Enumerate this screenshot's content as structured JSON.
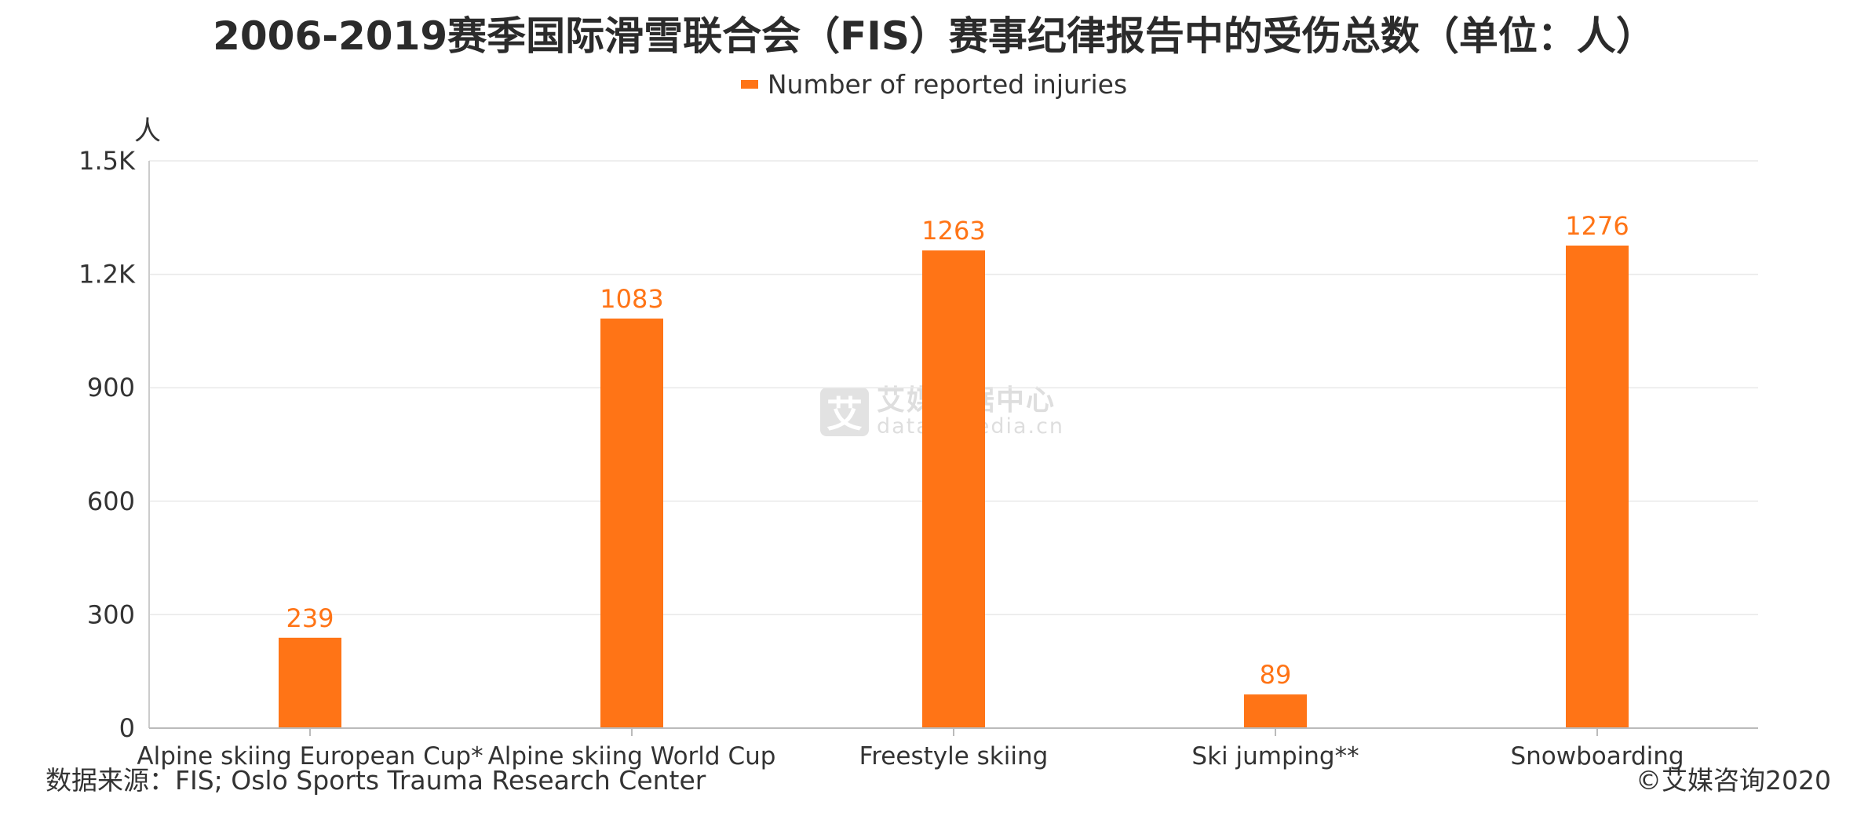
{
  "chart_data": {
    "type": "bar",
    "title": "2006-2019赛季国际滑雪联合会（FIS）赛事纪律报告中的受伤总数（单位：人）",
    "ylabel": "人",
    "xlabel": "",
    "categories": [
      "Alpine skiing European Cup*",
      "Alpine skiing World Cup",
      "Freestyle skiing",
      "Ski jumping**",
      "Snowboarding"
    ],
    "series": [
      {
        "name": "Number of reported injuries",
        "values": [
          239,
          1083,
          1263,
          89,
          1276
        ],
        "color": "#ff7416"
      }
    ],
    "ylim": [
      0,
      1500
    ],
    "yticks": [
      0,
      300,
      600,
      900,
      1200,
      1500
    ],
    "ytick_labels": [
      "0",
      "300",
      "600",
      "900",
      "1.2K",
      "1.5K"
    ],
    "grid": true,
    "legend_position": "top-center",
    "data_label_color": "#ff7416"
  },
  "footer": {
    "source": "数据来源：FIS; Oslo Sports Trauma Research Center",
    "copyright": "©艾媒咨询2020"
  },
  "watermark": {
    "logo_char": "艾",
    "name": "艾媒数据中心",
    "url": "data.iimedia.cn"
  }
}
